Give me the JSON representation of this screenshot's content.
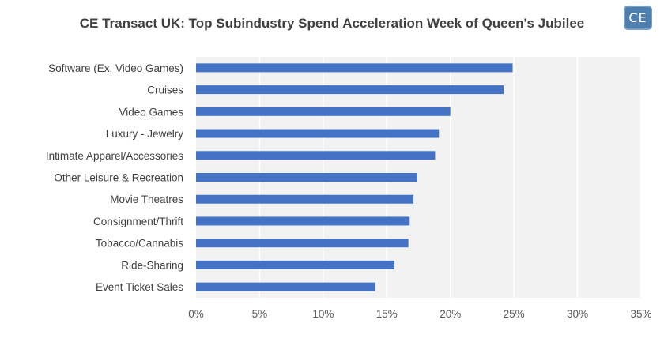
{
  "logo_text": "CE",
  "chart_data": {
    "type": "bar",
    "orientation": "horizontal",
    "title": "CE Transact UK: Top Subindustry Spend Acceleration Week of Queen's Jubilee",
    "xlabel": "",
    "ylabel": "",
    "categories": [
      "Software (Ex. Video Games)",
      "Cruises",
      "Video Games",
      "Luxury - Jewelry",
      "Intimate Apparel/Accessories",
      "Other Leisure & Recreation",
      "Movie Theatres",
      "Consignment/Thrift",
      "Tobacco/Cannabis",
      "Ride-Sharing",
      "Event Ticket Sales"
    ],
    "values": [
      24.9,
      24.2,
      20.0,
      19.1,
      18.8,
      17.4,
      17.1,
      16.8,
      16.7,
      15.6,
      14.1
    ],
    "xlim": [
      0,
      35
    ],
    "xticks": [
      "0%",
      "5%",
      "10%",
      "15%",
      "20%",
      "25%",
      "30%",
      "35%"
    ],
    "tick_values": [
      0,
      5,
      10,
      15,
      20,
      25,
      30,
      35
    ],
    "bar_color": "#4472c4",
    "plot_background": "#f2f2f2",
    "grid": true
  }
}
